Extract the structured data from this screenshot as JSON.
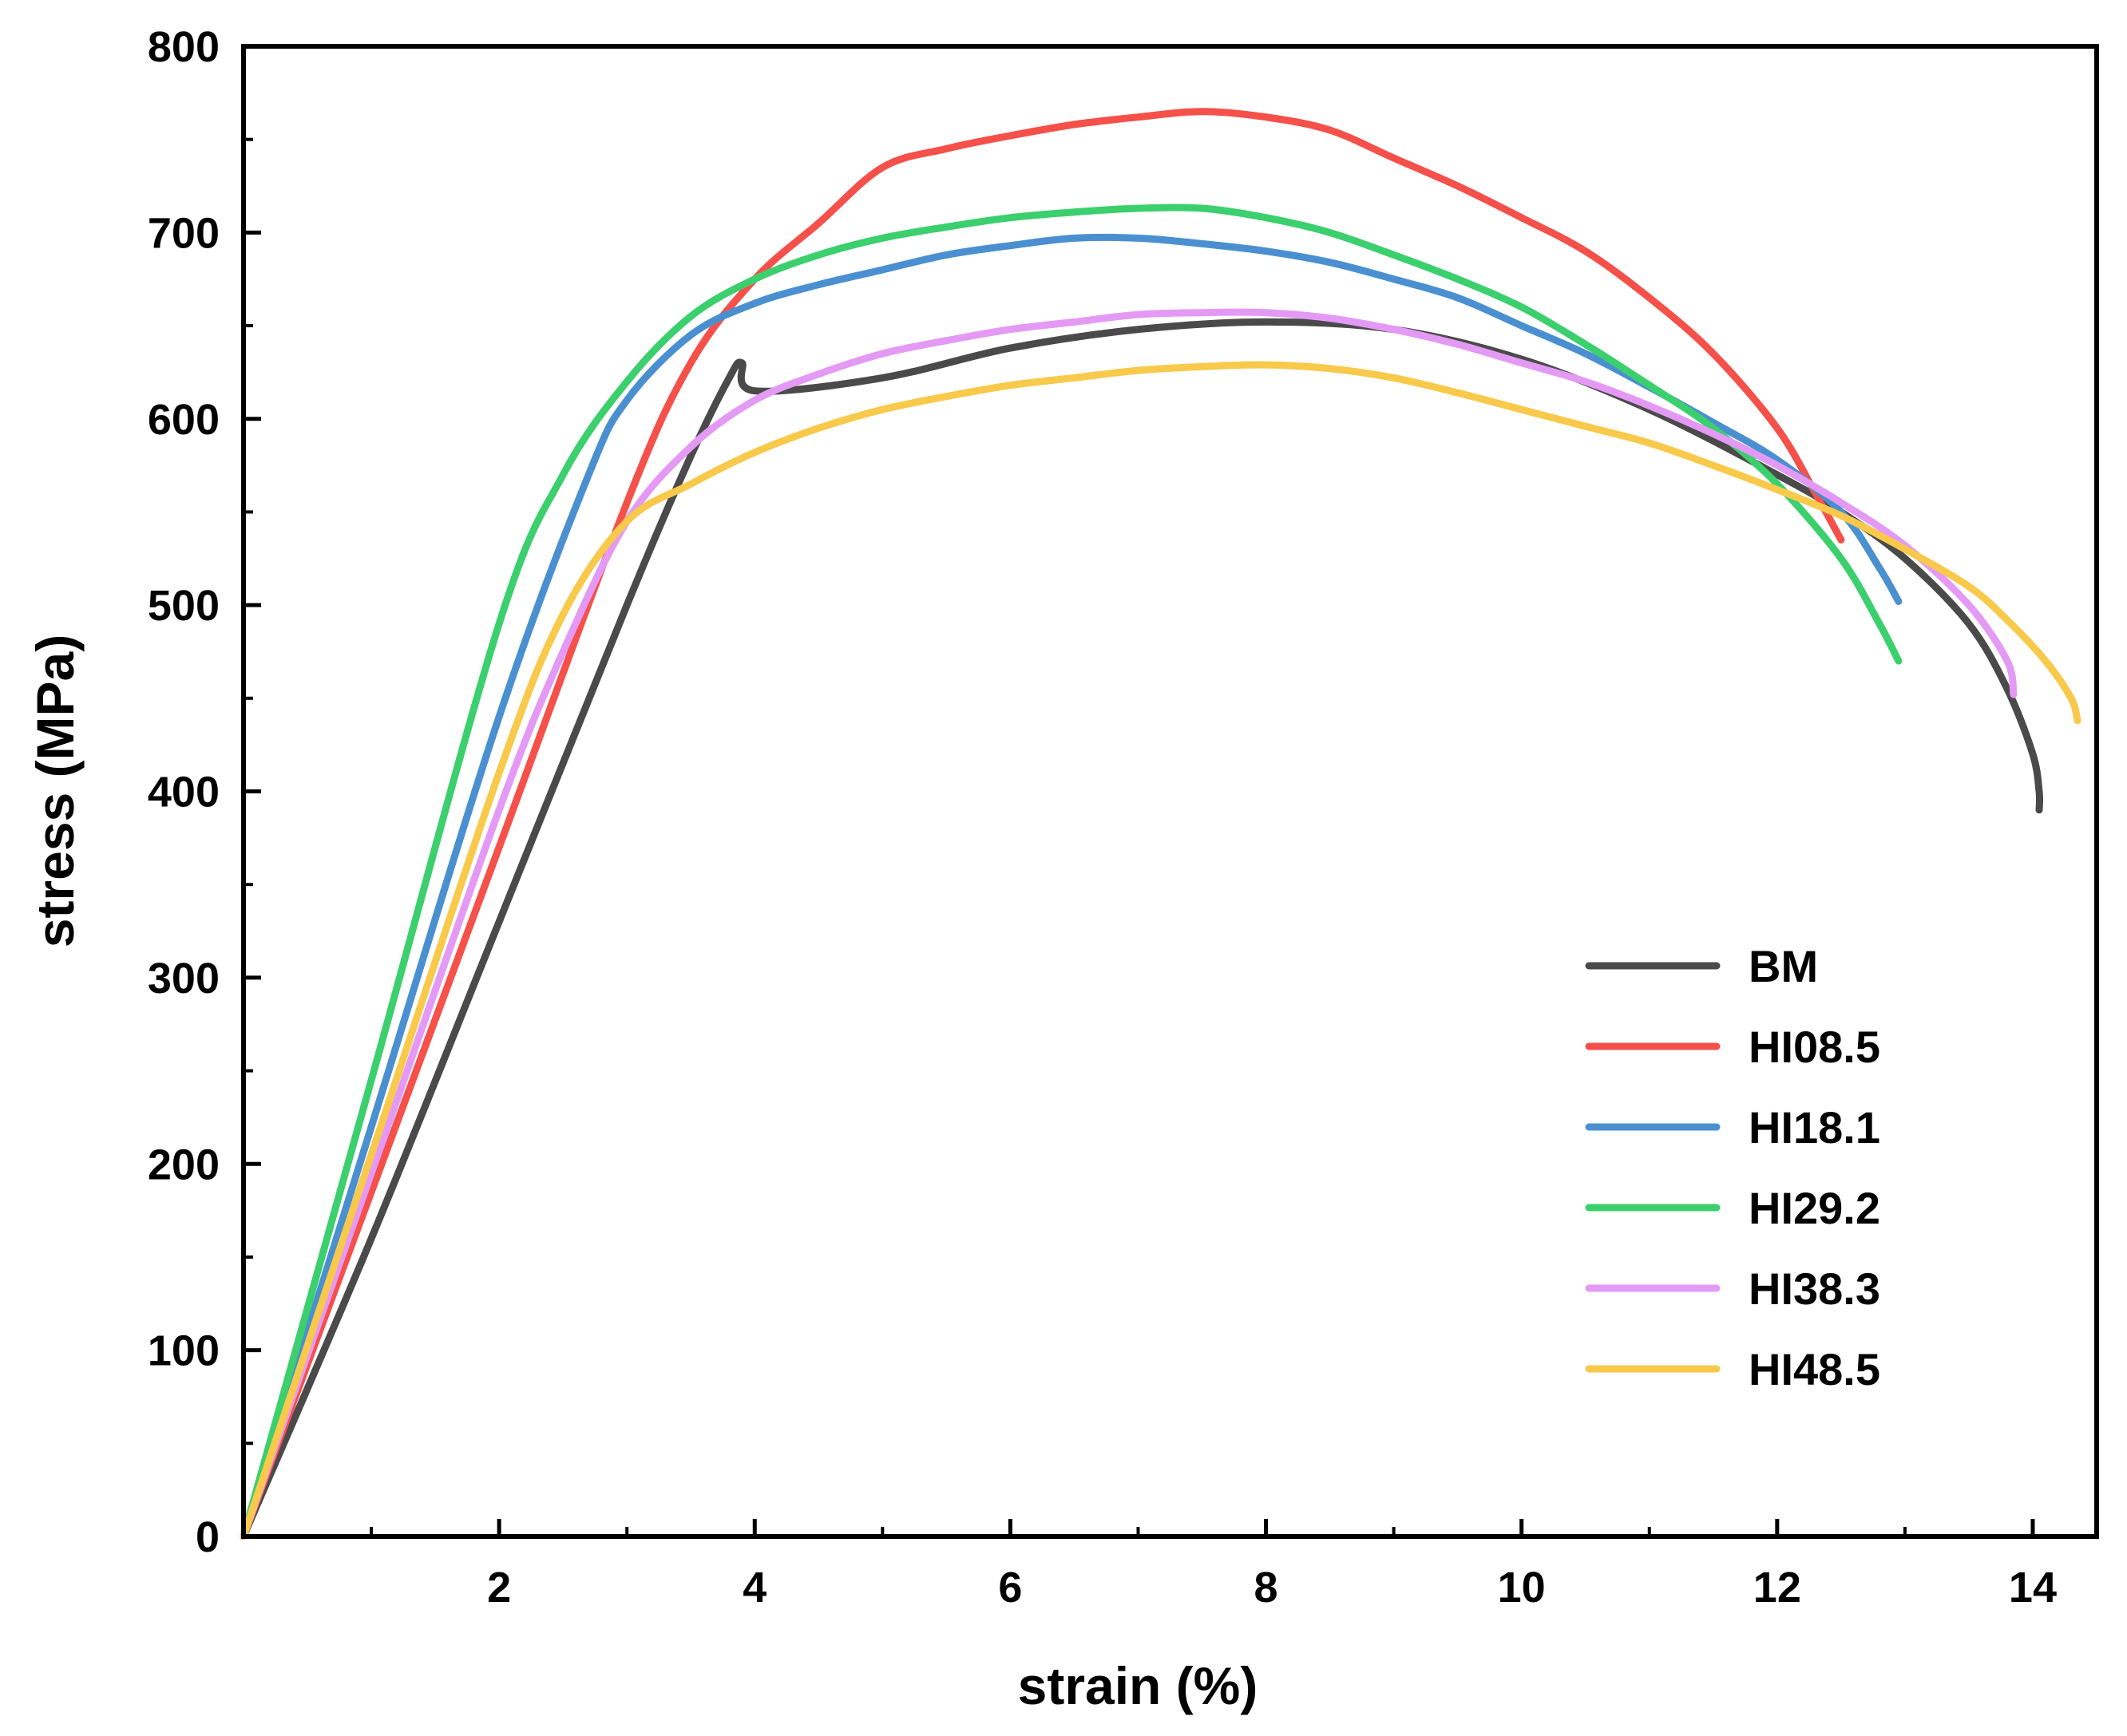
{
  "chart_data": {
    "type": "line",
    "title": "",
    "xlabel": "strain (%)",
    "ylabel": "stress (MPa)",
    "xlim": [
      0,
      14.5
    ],
    "ylim": [
      0,
      800
    ],
    "xticks": [
      2,
      4,
      6,
      8,
      10,
      12,
      14
    ],
    "xtick_labels": [
      "2",
      "4",
      "6",
      "8",
      "10",
      "12",
      "14"
    ],
    "yticks": [
      0,
      100,
      200,
      300,
      400,
      500,
      600,
      700,
      800
    ],
    "ytick_labels": [
      "0",
      "100",
      "200",
      "300",
      "400",
      "500",
      "600",
      "700",
      "800"
    ],
    "grid": false,
    "legend_position": "bottom-right",
    "series": [
      {
        "name": "BM",
        "color": "#4a4a4a",
        "x": [
          0,
          1,
          2,
          3,
          3.5,
          3.8,
          3.9,
          4.0,
          5,
          6,
          7,
          8,
          9,
          10,
          11,
          12,
          12.5,
          13,
          13.5,
          13.8,
          14.0,
          14.05,
          14.05
        ],
        "y": [
          0,
          160,
          330,
          500,
          580,
          622,
          630,
          615,
          622,
          638,
          648,
          652,
          648,
          632,
          605,
          570,
          550,
          525,
          490,
          455,
          420,
          400,
          390
        ]
      },
      {
        "name": "HI08.5",
        "color": "#f5504a",
        "x": [
          0,
          1,
          2,
          3,
          3.5,
          4,
          4.5,
          5,
          5.5,
          6,
          6.5,
          7,
          7.5,
          8,
          8.5,
          9,
          9.5,
          10,
          10.5,
          11,
          11.5,
          12,
          12.3,
          12.5
        ],
        "y": [
          0,
          185,
          370,
          555,
          630,
          675,
          705,
          735,
          745,
          752,
          758,
          762,
          765,
          762,
          755,
          740,
          725,
          708,
          690,
          665,
          635,
          595,
          560,
          535
        ]
      },
      {
        "name": "HI18.1",
        "color": "#4a90d0",
        "x": [
          0,
          1,
          2,
          2.7,
          3,
          3.5,
          4,
          4.5,
          5,
          5.5,
          6,
          6.5,
          7,
          7.5,
          8,
          8.5,
          9,
          9.5,
          10,
          10.5,
          11,
          11.5,
          12,
          12.5,
          12.8,
          12.95
        ],
        "y": [
          0,
          220,
          440,
          570,
          610,
          645,
          662,
          672,
          680,
          688,
          693,
          697,
          697,
          694,
          690,
          684,
          675,
          665,
          650,
          635,
          617,
          598,
          578,
          550,
          520,
          502
        ]
      },
      {
        "name": "HI29.2",
        "color": "#3ccf6e",
        "x": [
          0,
          1,
          2,
          2.5,
          3,
          3.5,
          4,
          4.5,
          5,
          5.5,
          6,
          6.5,
          7,
          7.5,
          8,
          8.5,
          9,
          9.5,
          10,
          10.5,
          11,
          11.5,
          12,
          12.5,
          12.8,
          12.95
        ],
        "y": [
          0,
          245,
          490,
          570,
          620,
          655,
          675,
          688,
          697,
          703,
          708,
          711,
          713,
          713,
          708,
          700,
          688,
          675,
          660,
          640,
          618,
          595,
          565,
          525,
          490,
          470
        ]
      },
      {
        "name": "HI38.3",
        "color": "#e49af5",
        "x": [
          0,
          1,
          2,
          2.5,
          3,
          3.5,
          4,
          4.5,
          5,
          5.5,
          6,
          6.5,
          7,
          7.5,
          8,
          8.5,
          9,
          9.5,
          10,
          10.5,
          11,
          11.5,
          12,
          12.5,
          13,
          13.5,
          13.8,
          13.85
        ],
        "y": [
          0,
          195,
          390,
          475,
          545,
          585,
          610,
          624,
          635,
          642,
          648,
          652,
          656,
          657,
          657,
          654,
          648,
          640,
          630,
          620,
          607,
          592,
          575,
          555,
          532,
          500,
          470,
          452
        ]
      },
      {
        "name": "HI48.5",
        "color": "#f8c94a",
        "x": [
          0,
          1,
          2,
          2.5,
          3,
          3.5,
          4,
          4.5,
          5,
          5.5,
          6,
          6.5,
          7,
          7.5,
          8,
          8.5,
          9,
          9.5,
          10,
          10.5,
          11,
          11.5,
          12,
          12.5,
          13,
          13.5,
          13.8,
          14.1,
          14.3,
          14.35
        ],
        "y": [
          0,
          205,
          410,
          495,
          545,
          565,
          582,
          595,
          605,
          612,
          618,
          622,
          626,
          628,
          629,
          627,
          622,
          614,
          605,
          596,
          587,
          575,
          562,
          548,
          530,
          510,
          492,
          470,
          450,
          438
        ]
      }
    ]
  }
}
